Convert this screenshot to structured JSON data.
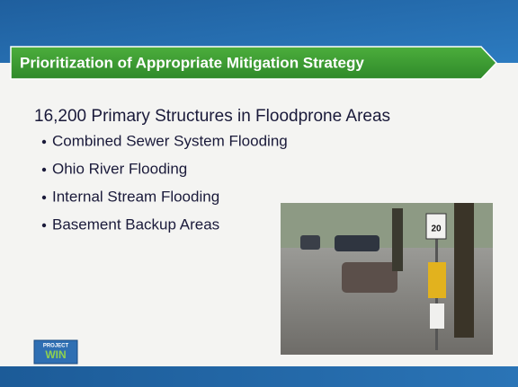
{
  "slide": {
    "title": "Prioritization of Appropriate Mitigation Strategy",
    "heading": "16,200 Primary Structures in Floodprone Areas",
    "bullets": [
      "Combined Sewer System Flooding",
      "Ohio River Flooding",
      "Internal Stream Flooding",
      "Basement Backup Areas"
    ],
    "logo": {
      "top": "PROJECT",
      "main": "WIN"
    },
    "photo": {
      "sign": "20"
    }
  }
}
